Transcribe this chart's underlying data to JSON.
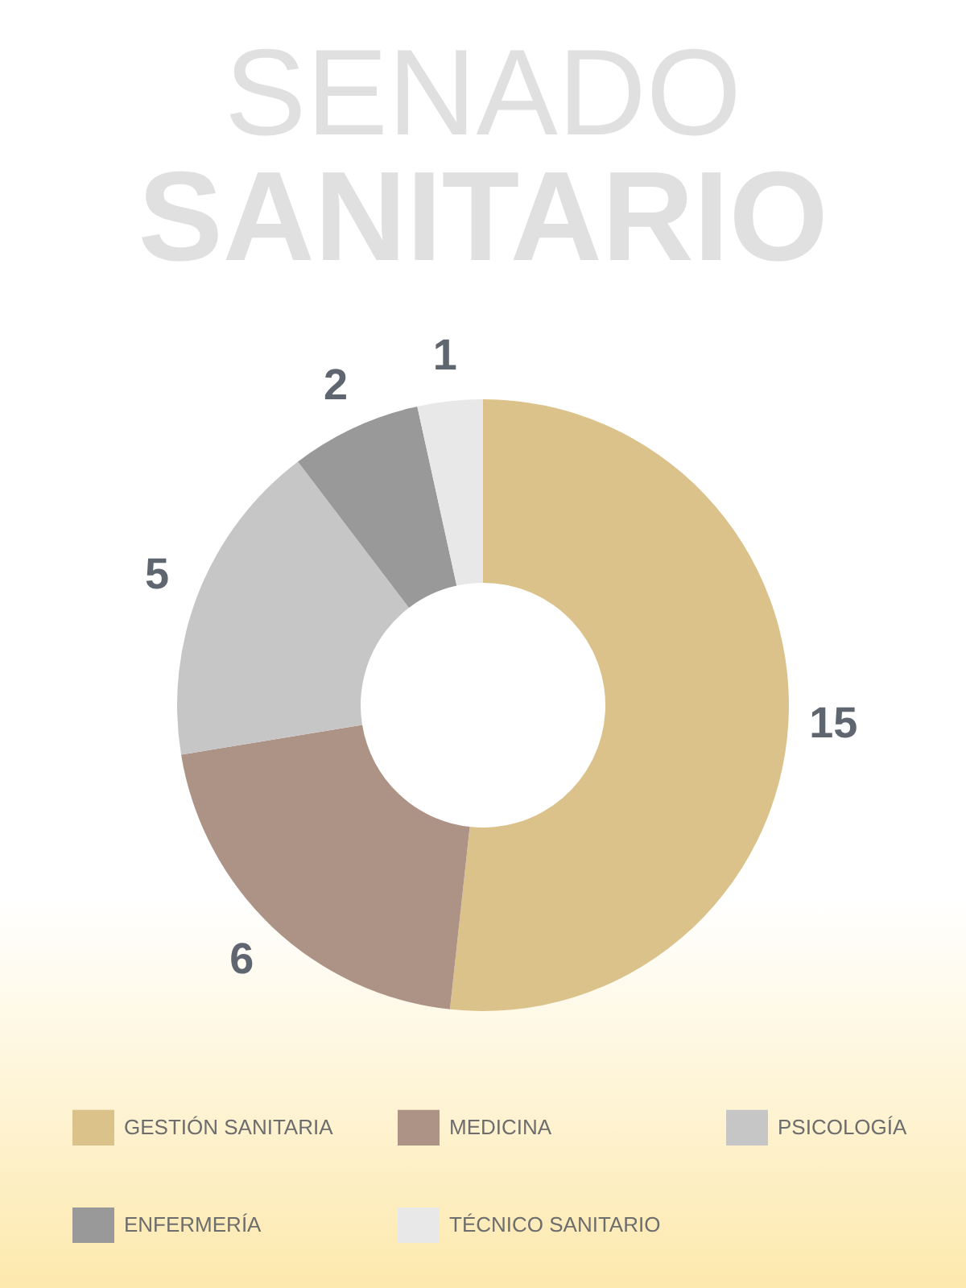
{
  "chart_data": {
    "type": "donut",
    "title": "SENADO",
    "subtitle": "SANITARIO",
    "categories": [
      "GESTIÓN SANITARIA",
      "MEDICINA",
      "PSICOLOGÍA",
      "ENFERMERÍA",
      "TÉCNICO SANITARIO"
    ],
    "values": [
      15,
      6,
      5,
      2,
      1
    ],
    "colors": [
      "#dbc28b",
      "#ad9386",
      "#c6c6c6",
      "#999999",
      "#e8e8e8"
    ],
    "data_labels": true,
    "legend": "bottom"
  }
}
